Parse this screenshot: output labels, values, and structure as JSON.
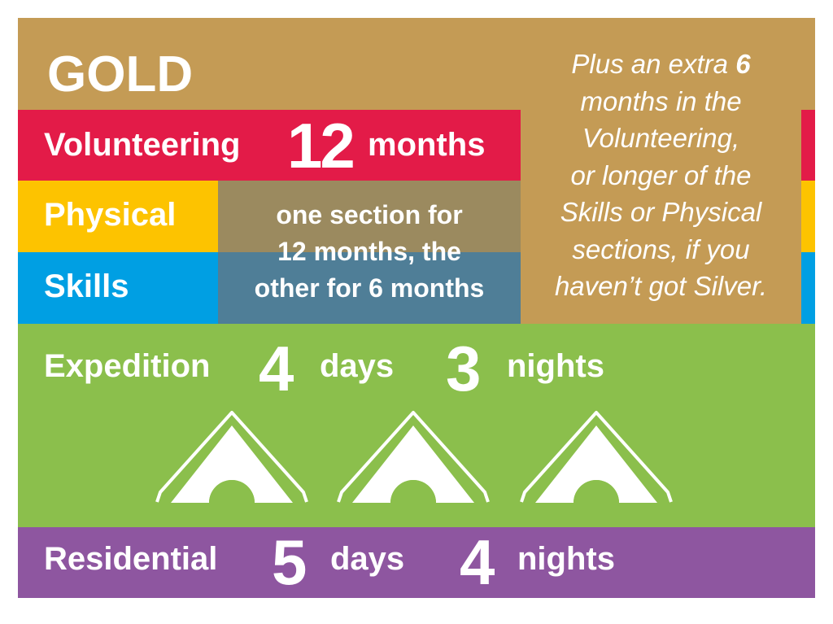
{
  "title": "GOLD",
  "colors": {
    "gold": "#C49B55",
    "volunteering": "#E31B48",
    "physical": "#FDC300",
    "skills": "#009FE3",
    "expedition": "#8BBF4C",
    "residential": "#8E56A0"
  },
  "volunteering": {
    "label": "Volunteering",
    "number": "12",
    "unit": "months"
  },
  "physical": {
    "label": "Physical"
  },
  "skills": {
    "label": "Skills"
  },
  "choice_note": [
    "one section for",
    "12 months, the",
    "other for 6 months"
  ],
  "extra_note": {
    "prefix": "Plus an extra ",
    "number": "6",
    "lines": [
      "months in the",
      "Volunteering,",
      "or longer of the",
      "Skills or Physical",
      "sections, if you",
      "haven’t got Silver."
    ]
  },
  "expedition": {
    "label": "Expedition",
    "days_number": "4",
    "days_unit": "days",
    "nights_number": "3",
    "nights_unit": "nights",
    "icon": "tent-icon",
    "tent_count": 3
  },
  "residential": {
    "label": "Residential",
    "days_number": "5",
    "days_unit": "days",
    "nights_number": "4",
    "nights_unit": "nights"
  }
}
